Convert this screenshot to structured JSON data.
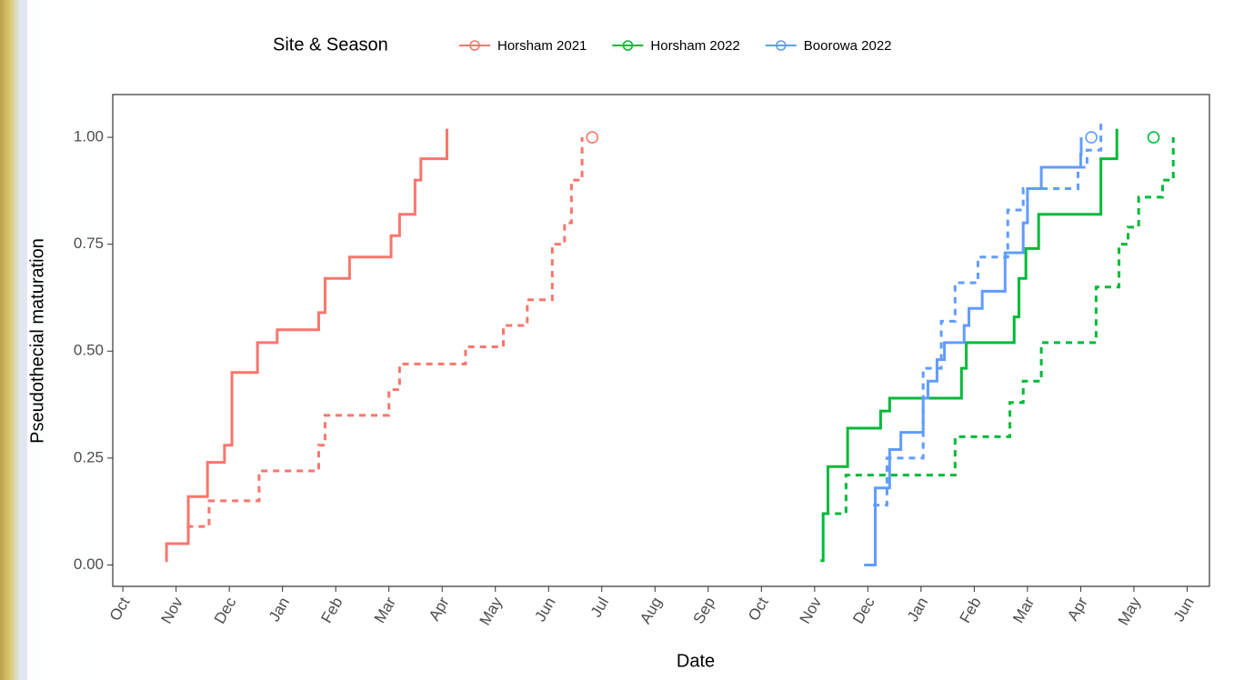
{
  "chart_data": {
    "type": "step",
    "legend_title": "Site & Season",
    "legend_position": "top",
    "x_label": "Date",
    "y_label": "Pseudothecial maturation",
    "xlim": [
      -0.19,
      20.42
    ],
    "ylim": [
      -0.05,
      1.1
    ],
    "xticks": [
      {
        "value": 0,
        "label": "Oct"
      },
      {
        "value": 1,
        "label": "Nov"
      },
      {
        "value": 2,
        "label": "Dec"
      },
      {
        "value": 3,
        "label": "Jan"
      },
      {
        "value": 4,
        "label": "Feb"
      },
      {
        "value": 5,
        "label": "Mar"
      },
      {
        "value": 6,
        "label": "Apr"
      },
      {
        "value": 7,
        "label": "May"
      },
      {
        "value": 8,
        "label": "Jun"
      },
      {
        "value": 9,
        "label": "Jul"
      },
      {
        "value": 10,
        "label": "Aug"
      },
      {
        "value": 11,
        "label": "Sep"
      },
      {
        "value": 12,
        "label": "Oct"
      },
      {
        "value": 13,
        "label": "Nov"
      },
      {
        "value": 14,
        "label": "Dec"
      },
      {
        "value": 15,
        "label": "Jan"
      },
      {
        "value": 16,
        "label": "Feb"
      },
      {
        "value": 17,
        "label": "Mar"
      },
      {
        "value": 18,
        "label": "Apr"
      },
      {
        "value": 19,
        "label": "May"
      },
      {
        "value": 20,
        "label": "Jun"
      }
    ],
    "yticks": [
      {
        "value": 0,
        "label": "0.00"
      },
      {
        "value": 0.25,
        "label": "0.25"
      },
      {
        "value": 0.5,
        "label": "0.50"
      },
      {
        "value": 0.75,
        "label": "0.75"
      },
      {
        "value": 1,
        "label": "1.00"
      }
    ],
    "grid": false,
    "series": [
      {
        "name": "Horsham 2021",
        "color": "#f8766d",
        "lines": [
          {
            "dashed": false,
            "x": [
              0.8,
              0.82,
              1.23,
              1.59,
              1.91,
              2.05,
              2.53,
              2.9,
              3.68,
              3.8,
              4.26,
              5.04,
              5.2,
              5.49,
              5.6,
              6.09
            ],
            "values": [
              0.01,
              0.05,
              0.16,
              0.24,
              0.28,
              0.45,
              0.52,
              0.55,
              0.59,
              0.67,
              0.72,
              0.77,
              0.82,
              0.9,
              0.95,
              1.02
            ]
          },
          {
            "dashed": true,
            "x": [
              1.2,
              1.62,
              2.56,
              3.68,
              3.8,
              5.0,
              5.2,
              6.44,
              7.15,
              7.6,
              8.07,
              8.3,
              8.43,
              8.63
            ],
            "values": [
              0.09,
              0.15,
              0.22,
              0.28,
              0.35,
              0.41,
              0.47,
              0.51,
              0.56,
              0.62,
              0.75,
              0.8,
              0.9,
              1.0
            ]
          }
        ],
        "point": [
          8.82,
          1.0
        ]
      },
      {
        "name": "Horsham 2022",
        "color": "#00ba38",
        "lines": [
          {
            "dashed": false,
            "x": [
              13.11,
              13.16,
              13.25,
              13.62,
              14.24,
              14.41,
              15.76,
              15.85,
              16.75,
              16.84,
              16.97,
              17.21,
              18.38,
              18.68
            ],
            "values": [
              0.01,
              0.12,
              0.23,
              0.32,
              0.36,
              0.39,
              0.46,
              0.52,
              0.58,
              0.67,
              0.74,
              0.82,
              0.95,
              1.02
            ]
          },
          {
            "dashed": true,
            "x": [
              13.16,
              13.59,
              15.64,
              16.67,
              16.92,
              17.26,
              18.29,
              18.72,
              18.89,
              19.09,
              19.54,
              19.74
            ],
            "values": [
              0.12,
              0.21,
              0.3,
              0.38,
              0.43,
              0.52,
              0.65,
              0.75,
              0.79,
              0.86,
              0.9,
              1.0
            ]
          }
        ],
        "point": [
          19.37,
          1.0
        ]
      },
      {
        "name": "Boorowa 2022",
        "color": "#619cff",
        "lines": [
          {
            "dashed": false,
            "x": [
              13.93,
              14.14,
              14.41,
              14.62,
              15.04,
              15.13,
              15.3,
              15.44,
              15.81,
              15.9,
              16.15,
              16.58,
              16.92,
              17.0,
              17.26,
              18.0,
              18.01
            ],
            "values": [
              0.0,
              0.18,
              0.27,
              0.31,
              0.39,
              0.43,
              0.48,
              0.52,
              0.56,
              0.6,
              0.64,
              0.73,
              0.8,
              0.88,
              0.93,
              0.96,
              1.0
            ]
          },
          {
            "dashed": true,
            "x": [
              14.1,
              14.36,
              15.04,
              15.38,
              15.64,
              16.07,
              16.63,
              16.92,
              17.95,
              18.12,
              18.38
            ],
            "values": [
              0.14,
              0.25,
              0.46,
              0.57,
              0.66,
              0.72,
              0.83,
              0.88,
              0.93,
              0.97,
              1.04
            ]
          }
        ],
        "point": [
          18.2,
          1.0
        ]
      }
    ]
  }
}
